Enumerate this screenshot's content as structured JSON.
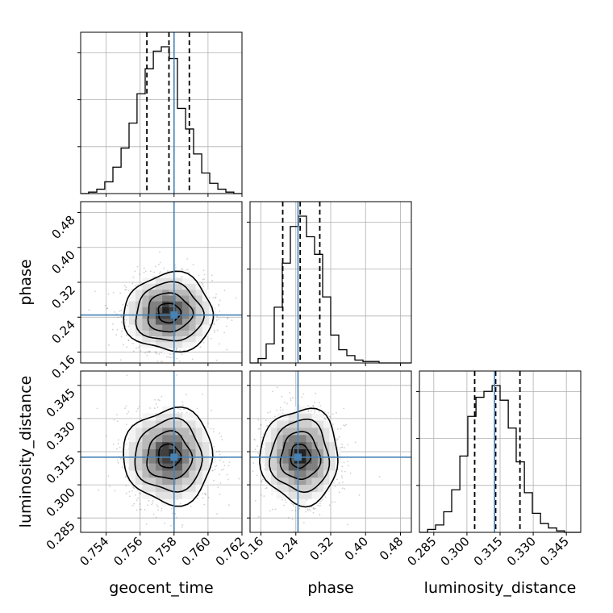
{
  "chart_data": {
    "type": "corner",
    "parameters": [
      "geocent_time",
      "phase",
      "luminosity_distance"
    ],
    "axis_labels": {
      "geocent_time": "geocent_time",
      "phase": "phase",
      "luminosity_distance": "luminosity_distance"
    },
    "ranges": {
      "geocent_time": [
        0.7525,
        0.762
      ],
      "phase": [
        0.135,
        0.505
      ],
      "luminosity_distance": [
        0.2785,
        0.3515
      ]
    },
    "ticks": {
      "geocent_time": [
        "0.754",
        "0.756",
        "0.758",
        "0.760",
        "0.762"
      ],
      "phase": [
        "0.16",
        "0.24",
        "0.32",
        "0.40",
        "0.48"
      ],
      "luminosity_distance": [
        "0.285",
        "0.300",
        "0.315",
        "0.330",
        "0.345"
      ]
    },
    "tick_values": {
      "geocent_time": [
        0.754,
        0.756,
        0.758,
        0.76,
        0.762
      ],
      "phase": [
        0.16,
        0.24,
        0.32,
        0.4,
        0.48
      ],
      "luminosity_distance": [
        0.285,
        0.3,
        0.315,
        0.33,
        0.345
      ]
    },
    "truths": {
      "geocent_time": 0.758,
      "phase": 0.245,
      "luminosity_distance": 0.3125
    },
    "quantiles": {
      "geocent_time": [
        0.7564,
        0.7577,
        0.7589
      ],
      "phase": [
        0.21,
        0.25,
        0.295
      ],
      "luminosity_distance": [
        0.3035,
        0.313,
        0.324
      ]
    },
    "histograms": {
      "geocent_time": {
        "edges": [
          0.7525,
          0.75297,
          0.75345,
          0.75392,
          0.7544,
          0.75488,
          0.75535,
          0.75582,
          0.7563,
          0.75678,
          0.75725,
          0.75772,
          0.7582,
          0.75868,
          0.75915,
          0.75963,
          0.7601,
          0.76058,
          0.76105,
          0.76152,
          0.762
        ],
        "counts": [
          0,
          0.01,
          0.03,
          0.08,
          0.18,
          0.31,
          0.48,
          0.68,
          0.85,
          0.97,
          1.0,
          0.92,
          0.58,
          0.44,
          0.27,
          0.14,
          0.07,
          0.03,
          0.01,
          0
        ]
      },
      "phase": {
        "edges": [
          0.135,
          0.1535,
          0.172,
          0.1905,
          0.209,
          0.2275,
          0.246,
          0.2645,
          0.283,
          0.3015,
          0.32,
          0.3385,
          0.357,
          0.3755,
          0.394,
          0.4125,
          0.431,
          0.4495,
          0.468,
          0.4865,
          0.505
        ],
        "counts": [
          0,
          0.03,
          0.13,
          0.38,
          0.68,
          0.93,
          1.0,
          0.86,
          0.74,
          0.45,
          0.19,
          0.09,
          0.05,
          0.02,
          0.01,
          0.01,
          0,
          0,
          0,
          0
        ]
      },
      "luminosity_distance": {
        "edges": [
          0.2785,
          0.2822,
          0.2858,
          0.2895,
          0.2931,
          0.2968,
          0.3004,
          0.3041,
          0.3077,
          0.3114,
          0.315,
          0.3187,
          0.3223,
          0.326,
          0.3296,
          0.3333,
          0.3369,
          0.3406,
          0.3442,
          0.3479,
          0.3515
        ],
        "counts": [
          0,
          0.02,
          0.05,
          0.14,
          0.29,
          0.52,
          0.79,
          0.92,
          0.96,
          1.0,
          0.9,
          0.71,
          0.48,
          0.27,
          0.13,
          0.06,
          0.03,
          0.01,
          0,
          0
        ]
      }
    },
    "contour_levels_sigma": [
      0.5,
      1.0,
      1.5,
      2.0
    ],
    "grid": true
  }
}
